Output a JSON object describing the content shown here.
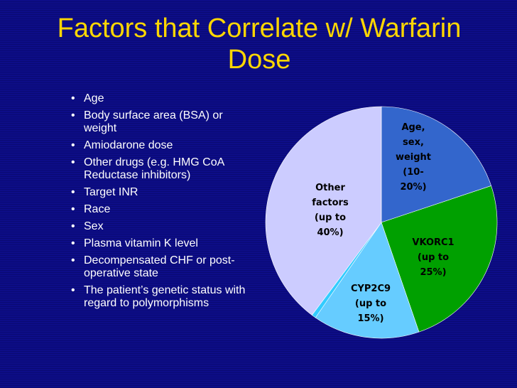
{
  "slide": {
    "title": "Factors that Correlate w/ Warfarin Dose",
    "title_color": "#ffd700",
    "background_color": "#0d0d88"
  },
  "bullets": [
    "Age",
    "Body surface area (BSA) or weight",
    "Amiodarone dose",
    "Other drugs (e.g. HMG CoA Reductase inhibitors)",
    "Target INR",
    "Race",
    "Sex",
    "Plasma vitamin K level",
    "Decompensated CHF or post-operative state",
    "The patient’s genetic status with regard to polymorphisms"
  ],
  "chart_data": {
    "type": "pie",
    "title": "",
    "start_angle_deg": 0,
    "slices": [
      {
        "label_lines": [
          "Age,",
          "sex,",
          "weight",
          "(10-",
          "20%)"
        ],
        "value": 20,
        "color": "#3366cc"
      },
      {
        "label_lines": [
          "VKORC1",
          "(up to",
          "25%)"
        ],
        "value": 25,
        "color": "#00a000"
      },
      {
        "label_lines": [
          "CYP2C9",
          "(up to",
          "15%)"
        ],
        "value": 15,
        "color": "#66ccff"
      },
      {
        "label_lines": [],
        "value": 0.6,
        "color": "#33ccff"
      },
      {
        "label_lines": [
          "Other",
          "factors",
          "(up to",
          "40%)"
        ],
        "value": 40,
        "color": "#ccccff"
      }
    ]
  }
}
